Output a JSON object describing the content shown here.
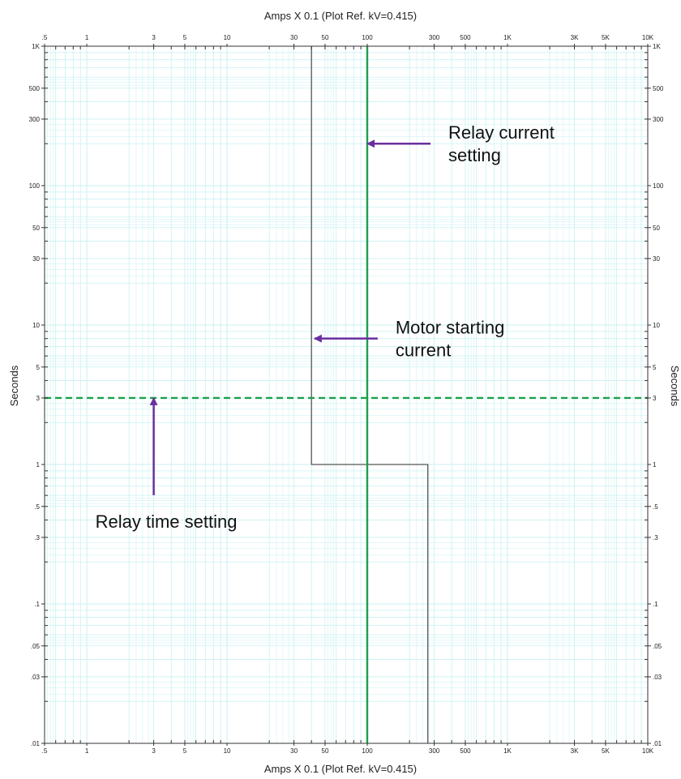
{
  "chart_data": {
    "type": "line",
    "xlabel": "Amps  X  0.1 (Plot Ref. kV=0.415)",
    "ylabel": "Seconds",
    "x_scale": "log",
    "y_scale": "log",
    "xlim": [
      0.5,
      10000
    ],
    "ylim": [
      0.01,
      1000
    ],
    "grid": true,
    "x_ticks": [
      {
        "v": 0.5,
        "label": ".5"
      },
      {
        "v": 1,
        "label": "1"
      },
      {
        "v": 3,
        "label": "3"
      },
      {
        "v": 5,
        "label": "5"
      },
      {
        "v": 10,
        "label": "10"
      },
      {
        "v": 30,
        "label": "30"
      },
      {
        "v": 50,
        "label": "50"
      },
      {
        "v": 100,
        "label": "100"
      },
      {
        "v": 300,
        "label": "300"
      },
      {
        "v": 500,
        "label": "500"
      },
      {
        "v": 1000,
        "label": "1K"
      },
      {
        "v": 3000,
        "label": "3K"
      },
      {
        "v": 5000,
        "label": "5K"
      },
      {
        "v": 10000,
        "label": "10K"
      }
    ],
    "y_ticks": [
      {
        "v": 1000,
        "label": "1K"
      },
      {
        "v": 500,
        "label": "500"
      },
      {
        "v": 300,
        "label": "300"
      },
      {
        "v": 100,
        "label": "100"
      },
      {
        "v": 50,
        "label": "50"
      },
      {
        "v": 30,
        "label": "30"
      },
      {
        "v": 10,
        "label": "10"
      },
      {
        "v": 5,
        "label": "5"
      },
      {
        "v": 3,
        "label": "3"
      },
      {
        "v": 1,
        "label": "1"
      },
      {
        "v": 0.5,
        "label": ".5"
      },
      {
        "v": 0.3,
        "label": ".3"
      },
      {
        "v": 0.1,
        "label": ".1"
      },
      {
        "v": 0.05,
        "label": ".05"
      },
      {
        "v": 0.03,
        "label": ".03"
      },
      {
        "v": 0.01,
        "label": ".01"
      }
    ],
    "series": [
      {
        "kind": "motor-starting-curve",
        "color": "#555555",
        "style": "solid",
        "points": [
          [
            40,
            1000
          ],
          [
            40,
            1
          ],
          [
            270,
            1
          ],
          [
            270,
            0.01
          ]
        ]
      },
      {
        "kind": "relay-current-setting",
        "color": "#1aa14a",
        "style": "solid",
        "points": [
          [
            100,
            1000
          ],
          [
            100,
            0.01
          ]
        ]
      },
      {
        "kind": "relay-time-setting",
        "color": "#1aa14a",
        "style": "dashed",
        "points": [
          [
            0.5,
            3
          ],
          [
            10000,
            3
          ]
        ]
      }
    ],
    "annotations": [
      {
        "text": [
          "Relay current",
          "setting"
        ],
        "arrow_to": [
          100,
          200
        ],
        "arrow_dir": "left",
        "color": "#6a2fa0"
      },
      {
        "text": [
          "Motor starting",
          "current"
        ],
        "arrow_to": [
          42,
          8
        ],
        "arrow_dir": "left",
        "color": "#6a2fa0"
      },
      {
        "text": [
          "Relay time setting"
        ],
        "arrow_to": [
          3,
          3
        ],
        "arrow_dir": "up",
        "color": "#6a2fa0"
      }
    ],
    "colors": {
      "grid": "#c8f0f2",
      "frame": "#333333"
    }
  }
}
